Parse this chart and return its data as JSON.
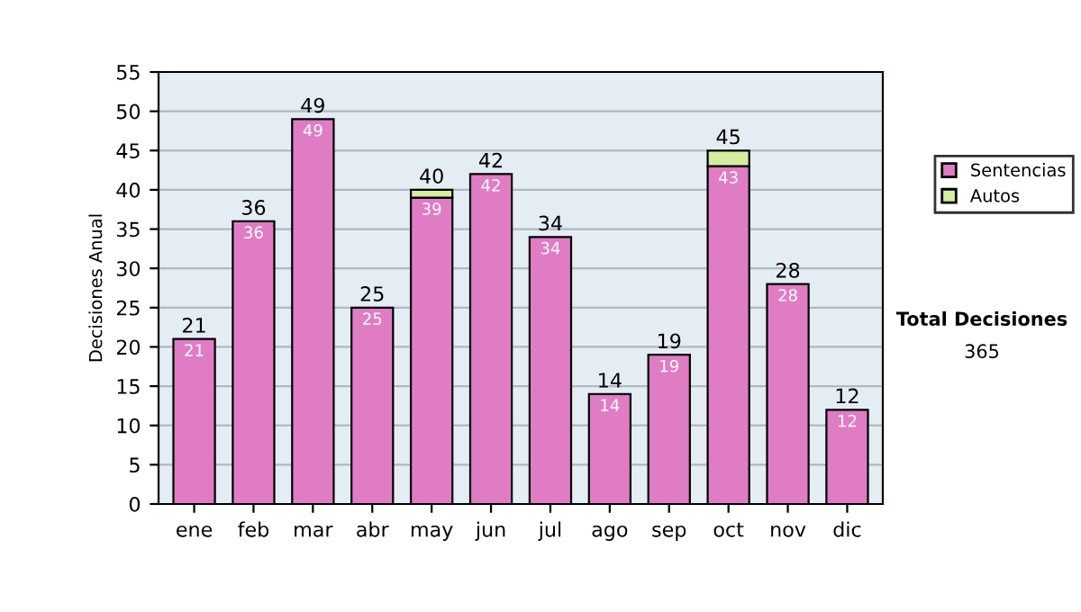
{
  "chart_data": {
    "type": "bar",
    "ylabel": "Decisiones Anual",
    "categories": [
      "ene",
      "feb",
      "mar",
      "abr",
      "may",
      "jun",
      "jul",
      "ago",
      "sep",
      "oct",
      "nov",
      "dic"
    ],
    "stacked": true,
    "series": [
      {
        "name": "Sentencias",
        "color": "#e07cc4",
        "values": [
          21,
          36,
          49,
          25,
          39,
          42,
          34,
          14,
          19,
          43,
          28,
          12
        ],
        "value_labels": [
          "21",
          "36",
          "49",
          "25",
          "39",
          "42",
          "34",
          "14",
          "19",
          "43",
          "28",
          "12"
        ]
      },
      {
        "name": "Autos",
        "color": "#d6eca0",
        "values": [
          null,
          null,
          null,
          null,
          1,
          null,
          null,
          null,
          null,
          2,
          null,
          null
        ]
      }
    ],
    "totals": [
      "21",
      "36",
      "49",
      "25",
      "40",
      "42",
      "34",
      "14",
      "19",
      "45",
      "28",
      "12"
    ],
    "ylim": [
      0,
      55
    ],
    "yticks": [
      0,
      5,
      10,
      15,
      20,
      25,
      30,
      35,
      40,
      45,
      50,
      55
    ],
    "grid": "y",
    "legend": "right",
    "annotations": [
      "Total Decisiones",
      "365"
    ]
  }
}
